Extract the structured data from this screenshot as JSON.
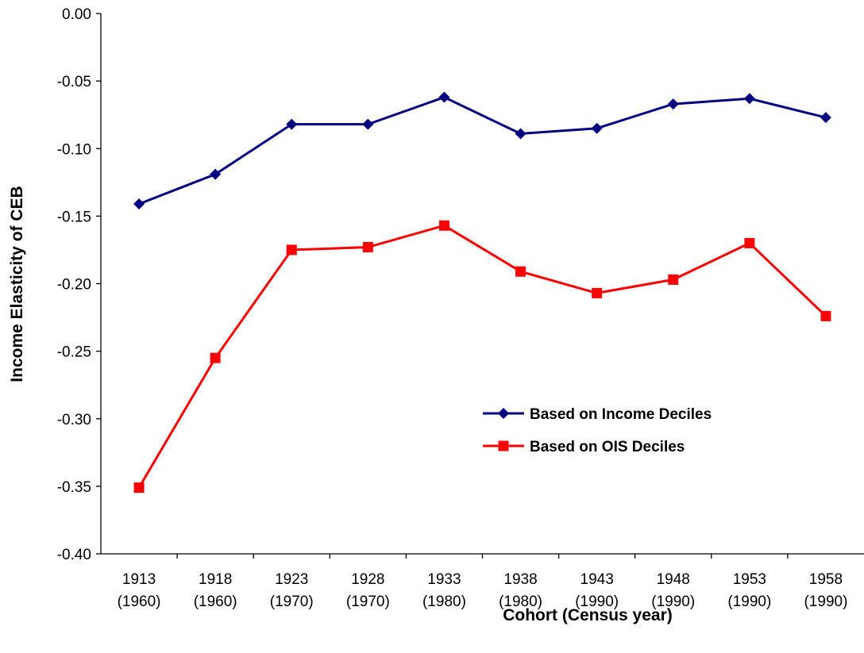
{
  "chart_data": {
    "type": "line",
    "x_label": "Cohort (Census year)",
    "y_label": "Income Elasticity of CEB",
    "categories": [
      "1913\n(1960)",
      "1918\n(1960)",
      "1923\n(1970)",
      "1928\n(1970)",
      "1933\n(1980)",
      "1938\n(1980)",
      "1943\n(1990)",
      "1948\n(1990)",
      "1953\n(1990)",
      "1958\n(1990)"
    ],
    "series": [
      {
        "name": "Based on Income Deciles",
        "color": "#000080",
        "marker": "diamond",
        "values": [
          -0.141,
          -0.119,
          -0.082,
          -0.082,
          -0.062,
          -0.089,
          -0.085,
          -0.067,
          -0.063,
          -0.077
        ]
      },
      {
        "name": "Based on OIS Deciles",
        "color": "#ff0000",
        "marker": "square",
        "values": [
          -0.351,
          -0.255,
          -0.175,
          -0.173,
          -0.157,
          -0.191,
          -0.207,
          -0.197,
          -0.17,
          -0.224
        ]
      }
    ],
    "ylim": [
      -0.4,
      0.0
    ],
    "yticks": [
      {
        "value": -0.4,
        "label": "-0.40"
      },
      {
        "value": -0.35,
        "label": "-0.35"
      },
      {
        "value": -0.3,
        "label": "-0.30"
      },
      {
        "value": -0.25,
        "label": "-0.25"
      },
      {
        "value": -0.2,
        "label": "-0.20"
      },
      {
        "value": -0.15,
        "label": "-0.15"
      },
      {
        "value": -0.1,
        "label": "-0.10"
      },
      {
        "value": -0.05,
        "label": "-0.05"
      },
      {
        "value": 0.0,
        "label": "0.00"
      }
    ],
    "grid": false,
    "legend": "center-right"
  }
}
